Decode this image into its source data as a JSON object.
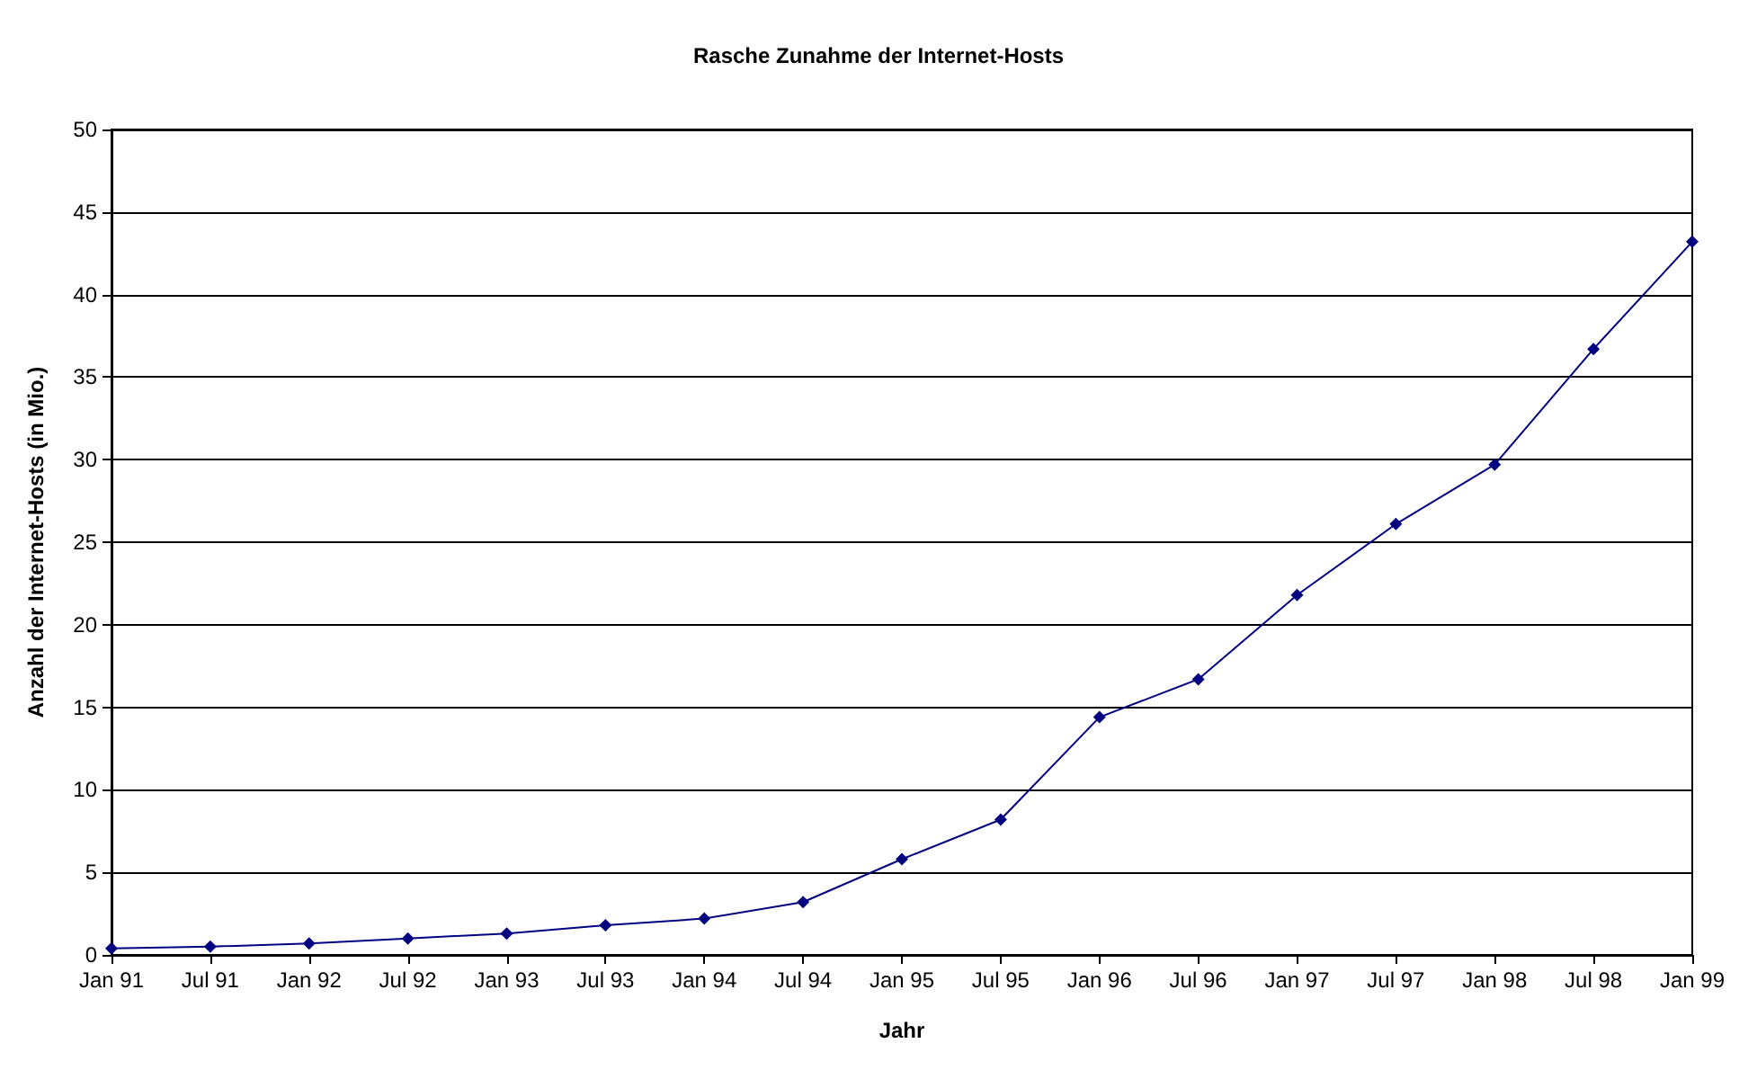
{
  "chart_data": {
    "type": "line",
    "title": "Rasche Zunahme der Internet-Hosts",
    "xlabel": "Jahr",
    "ylabel": "Anzahl der Internet-Hosts (in Mio.)",
    "categories": [
      "Jan 91",
      "Jul 91",
      "Jan 92",
      "Jul 92",
      "Jan 93",
      "Jul 93",
      "Jan 94",
      "Jul 94",
      "Jan 95",
      "Jul 95",
      "Jan 96",
      "Jul 96",
      "Jan 97",
      "Jul 97",
      "Jan 98",
      "Jul 98",
      "Jan 99"
    ],
    "series": [
      {
        "color": "#000080",
        "values": [
          0.4,
          0.5,
          0.7,
          1.0,
          1.3,
          1.8,
          2.2,
          3.2,
          5.8,
          8.2,
          14.4,
          16.7,
          21.8,
          26.1,
          29.7,
          36.7,
          43.2
        ]
      }
    ],
    "ylim": [
      0,
      50
    ],
    "yticks": [
      0,
      5,
      10,
      15,
      20,
      25,
      30,
      35,
      40,
      45,
      50
    ],
    "grid": "y",
    "marker": "diamond",
    "line_style": "solid"
  }
}
